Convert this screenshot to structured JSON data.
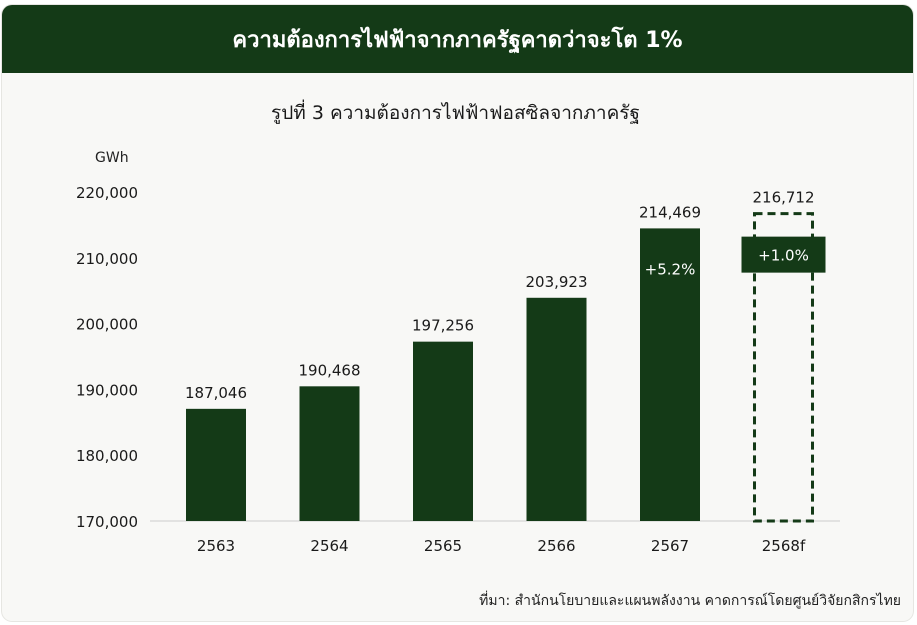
{
  "banner": {
    "title": "ความต้องการไฟฟ้าจากภาครัฐคาดว่าจะโต 1%"
  },
  "chart_data": {
    "type": "bar",
    "title": "รูปที่ 3 ความต้องการไฟฟ้าฟอสซิลจากภาครัฐ",
    "ylabel": "GWh",
    "xlabel": "",
    "categories": [
      "2563",
      "2564",
      "2565",
      "2566",
      "2567",
      "2568f"
    ],
    "values": [
      187046,
      190468,
      197256,
      203923,
      214469,
      216712
    ],
    "value_labels": [
      "187,046",
      "190,468",
      "197,256",
      "203,923",
      "214,469",
      "216,712"
    ],
    "forecast": [
      false,
      false,
      false,
      false,
      false,
      true
    ],
    "growth_annotations": [
      {
        "category": "2567",
        "label": "+5.2%"
      },
      {
        "category": "2568f",
        "label": "+1.0%"
      }
    ],
    "ylim": [
      170000,
      220000
    ],
    "yticks": [
      170000,
      180000,
      190000,
      200000,
      210000,
      220000
    ],
    "ytick_labels": [
      "170,000",
      "180,000",
      "190,000",
      "200,000",
      "210,000",
      "220,000"
    ],
    "grid": false,
    "colors": {
      "bar": "#143a17",
      "axis": "#cccccc",
      "text": "#1a1a1a"
    }
  },
  "source": "ที่มา: สำนักนโยบายและแผนพลังงาน คาดการณ์โดยศูนย์วิจัยกสิกรไทย"
}
